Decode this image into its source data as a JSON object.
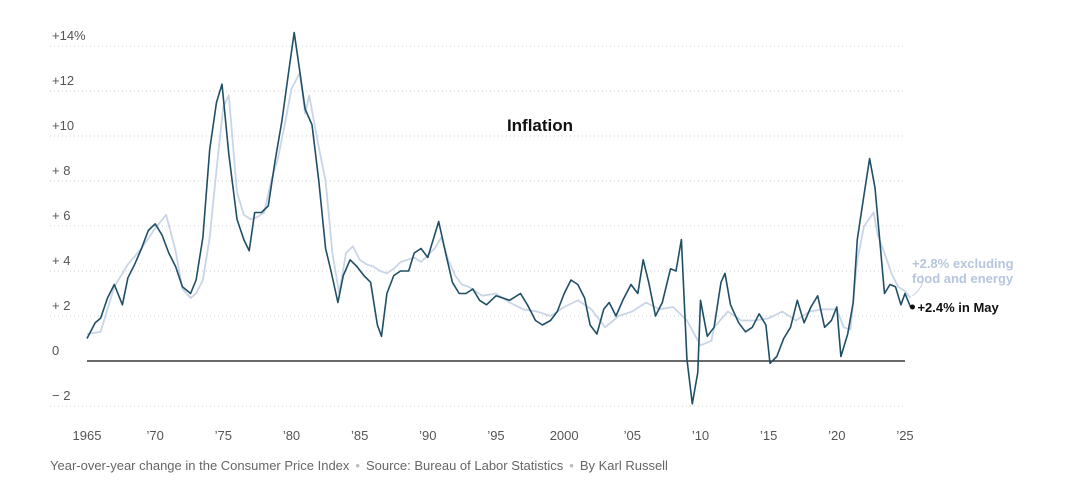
{
  "chart_data": {
    "type": "line",
    "title": "Inflation",
    "ylim": [
      -2.5,
      14.5
    ],
    "xlim": [
      1965,
      2025
    ],
    "y_ticks": [
      {
        "value": 14,
        "label": "+14%"
      },
      {
        "value": 12,
        "label": "+12"
      },
      {
        "value": 10,
        "label": "+10"
      },
      {
        "value": 8,
        "label": "+ 8"
      },
      {
        "value": 6,
        "label": "+ 6"
      },
      {
        "value": 4,
        "label": "+ 4"
      },
      {
        "value": 2,
        "label": "+ 2"
      },
      {
        "value": 0,
        "label": "0"
      },
      {
        "value": -2,
        "label": "− 2"
      }
    ],
    "x_ticks": [
      {
        "value": 1965,
        "label": "1965"
      },
      {
        "value": 1970,
        "label": "’70"
      },
      {
        "value": 1975,
        "label": "’75"
      },
      {
        "value": 1980,
        "label": "’80"
      },
      {
        "value": 1985,
        "label": "’85"
      },
      {
        "value": 1990,
        "label": "’90"
      },
      {
        "value": 1995,
        "label": "’95"
      },
      {
        "value": 2000,
        "label": "2000"
      },
      {
        "value": 2005,
        "label": "’05"
      },
      {
        "value": 2010,
        "label": "’10"
      },
      {
        "value": 2015,
        "label": "’15"
      },
      {
        "value": 2020,
        "label": "’20"
      },
      {
        "value": 2025,
        "label": "’25"
      }
    ],
    "grid": true,
    "series": [
      {
        "name": "",
        "color": "#c9d5e6",
        "end_label": [
          "+2.8% excluding",
          "food and energy"
        ],
        "points": [
          [
            1965.0,
            1.2
          ],
          [
            1966.0,
            1.3
          ],
          [
            1967.0,
            3.3
          ],
          [
            1968.0,
            4.3
          ],
          [
            1969.0,
            5.0
          ],
          [
            1970.0,
            5.9
          ],
          [
            1970.8,
            6.5
          ],
          [
            1971.5,
            4.9
          ],
          [
            1972.0,
            3.2
          ],
          [
            1972.6,
            2.8
          ],
          [
            1973.0,
            3.0
          ],
          [
            1973.5,
            3.6
          ],
          [
            1974.0,
            5.5
          ],
          [
            1974.5,
            8.5
          ],
          [
            1975.0,
            11.3
          ],
          [
            1975.4,
            11.8
          ],
          [
            1976.0,
            7.5
          ],
          [
            1976.5,
            6.5
          ],
          [
            1977.0,
            6.3
          ],
          [
            1977.5,
            6.4
          ],
          [
            1978.0,
            6.6
          ],
          [
            1978.5,
            8.0
          ],
          [
            1979.0,
            9.0
          ],
          [
            1979.5,
            10.5
          ],
          [
            1980.0,
            12.1
          ],
          [
            1980.6,
            12.8
          ],
          [
            1981.0,
            11.0
          ],
          [
            1981.3,
            11.8
          ],
          [
            1982.0,
            9.5
          ],
          [
            1982.5,
            8.0
          ],
          [
            1983.0,
            4.8
          ],
          [
            1983.5,
            3.0
          ],
          [
            1984.0,
            4.8
          ],
          [
            1984.5,
            5.1
          ],
          [
            1985.0,
            4.5
          ],
          [
            1985.5,
            4.3
          ],
          [
            1986.0,
            4.2
          ],
          [
            1986.5,
            4.0
          ],
          [
            1987.0,
            3.9
          ],
          [
            1987.5,
            4.1
          ],
          [
            1988.0,
            4.4
          ],
          [
            1988.5,
            4.5
          ],
          [
            1989.0,
            4.6
          ],
          [
            1989.5,
            4.4
          ],
          [
            1990.0,
            4.7
          ],
          [
            1990.5,
            5.0
          ],
          [
            1991.0,
            5.5
          ],
          [
            1991.5,
            4.5
          ],
          [
            1992.0,
            3.8
          ],
          [
            1992.5,
            3.4
          ],
          [
            1993.0,
            3.3
          ],
          [
            1993.5,
            3.1
          ],
          [
            1994.0,
            2.9
          ],
          [
            1995.0,
            3.0
          ],
          [
            1996.0,
            2.6
          ],
          [
            1997.0,
            2.3
          ],
          [
            1998.0,
            2.2
          ],
          [
            1999.0,
            2.0
          ],
          [
            2000.0,
            2.4
          ],
          [
            2001.0,
            2.7
          ],
          [
            2002.0,
            2.3
          ],
          [
            2003.0,
            1.5
          ],
          [
            2004.0,
            2.0
          ],
          [
            2005.0,
            2.2
          ],
          [
            2006.0,
            2.6
          ],
          [
            2007.0,
            2.3
          ],
          [
            2008.0,
            2.4
          ],
          [
            2009.0,
            1.8
          ],
          [
            2010.0,
            0.7
          ],
          [
            2010.8,
            0.9
          ],
          [
            2011.0,
            1.5
          ],
          [
            2012.0,
            2.2
          ],
          [
            2013.0,
            1.8
          ],
          [
            2014.0,
            1.8
          ],
          [
            2015.0,
            1.9
          ],
          [
            2016.0,
            2.2
          ],
          [
            2017.0,
            1.8
          ],
          [
            2018.0,
            2.2
          ],
          [
            2019.0,
            2.3
          ],
          [
            2020.0,
            2.3
          ],
          [
            2020.5,
            1.5
          ],
          [
            2021.0,
            1.4
          ],
          [
            2021.5,
            4.5
          ],
          [
            2022.0,
            6.0
          ],
          [
            2022.7,
            6.6
          ],
          [
            2023.0,
            5.6
          ],
          [
            2023.5,
            4.8
          ],
          [
            2024.0,
            3.9
          ],
          [
            2024.5,
            3.3
          ],
          [
            2025.0,
            3.1
          ],
          [
            2025.4,
            2.8
          ]
        ]
      },
      {
        "name": "",
        "color": "#1f4f66",
        "end_label": [
          "+2.4% in May"
        ],
        "points": [
          [
            1965.0,
            1.0
          ],
          [
            1965.6,
            1.7
          ],
          [
            1966.0,
            1.9
          ],
          [
            1966.5,
            2.8
          ],
          [
            1967.0,
            3.4
          ],
          [
            1967.6,
            2.5
          ],
          [
            1968.0,
            3.7
          ],
          [
            1968.5,
            4.3
          ],
          [
            1969.0,
            5.0
          ],
          [
            1969.5,
            5.8
          ],
          [
            1970.0,
            6.1
          ],
          [
            1970.5,
            5.6
          ],
          [
            1971.0,
            4.8
          ],
          [
            1971.5,
            4.2
          ],
          [
            1972.0,
            3.3
          ],
          [
            1972.6,
            3.0
          ],
          [
            1973.0,
            3.6
          ],
          [
            1973.5,
            5.5
          ],
          [
            1974.0,
            9.4
          ],
          [
            1974.5,
            11.5
          ],
          [
            1974.9,
            12.3
          ],
          [
            1975.4,
            9.2
          ],
          [
            1976.0,
            6.3
          ],
          [
            1976.5,
            5.4
          ],
          [
            1976.9,
            4.9
          ],
          [
            1977.3,
            6.6
          ],
          [
            1977.8,
            6.6
          ],
          [
            1978.3,
            6.9
          ],
          [
            1978.8,
            8.9
          ],
          [
            1979.3,
            10.7
          ],
          [
            1979.8,
            12.9
          ],
          [
            1980.2,
            14.6
          ],
          [
            1980.6,
            12.9
          ],
          [
            1981.0,
            11.2
          ],
          [
            1981.5,
            10.5
          ],
          [
            1982.0,
            8.0
          ],
          [
            1982.5,
            5.0
          ],
          [
            1982.9,
            4.0
          ],
          [
            1983.4,
            2.6
          ],
          [
            1983.8,
            3.8
          ],
          [
            1984.3,
            4.5
          ],
          [
            1984.8,
            4.2
          ],
          [
            1985.3,
            3.8
          ],
          [
            1985.8,
            3.5
          ],
          [
            1986.3,
            1.6
          ],
          [
            1986.6,
            1.1
          ],
          [
            1987.0,
            3.0
          ],
          [
            1987.5,
            3.8
          ],
          [
            1988.0,
            4.0
          ],
          [
            1988.6,
            4.0
          ],
          [
            1989.0,
            4.8
          ],
          [
            1989.5,
            5.0
          ],
          [
            1990.0,
            4.6
          ],
          [
            1990.8,
            6.2
          ],
          [
            1991.3,
            4.8
          ],
          [
            1991.8,
            3.5
          ],
          [
            1992.3,
            3.0
          ],
          [
            1992.8,
            3.0
          ],
          [
            1993.3,
            3.2
          ],
          [
            1993.8,
            2.7
          ],
          [
            1994.3,
            2.5
          ],
          [
            1995.0,
            2.9
          ],
          [
            1995.5,
            2.8
          ],
          [
            1996.0,
            2.7
          ],
          [
            1996.8,
            3.0
          ],
          [
            1997.3,
            2.5
          ],
          [
            1997.9,
            1.8
          ],
          [
            1998.4,
            1.6
          ],
          [
            1999.0,
            1.8
          ],
          [
            1999.5,
            2.2
          ],
          [
            2000.0,
            3.0
          ],
          [
            2000.5,
            3.6
          ],
          [
            2001.0,
            3.4
          ],
          [
            2001.5,
            2.8
          ],
          [
            2001.9,
            1.6
          ],
          [
            2002.4,
            1.2
          ],
          [
            2002.9,
            2.3
          ],
          [
            2003.3,
            2.6
          ],
          [
            2003.8,
            2.0
          ],
          [
            2004.3,
            2.7
          ],
          [
            2004.9,
            3.4
          ],
          [
            2005.4,
            3.0
          ],
          [
            2005.8,
            4.5
          ],
          [
            2006.2,
            3.5
          ],
          [
            2006.7,
            2.0
          ],
          [
            2007.2,
            2.6
          ],
          [
            2007.8,
            4.1
          ],
          [
            2008.2,
            4.0
          ],
          [
            2008.6,
            5.4
          ],
          [
            2009.0,
            0.1
          ],
          [
            2009.4,
            -1.9
          ],
          [
            2009.8,
            -0.5
          ],
          [
            2010.0,
            2.7
          ],
          [
            2010.5,
            1.1
          ],
          [
            2011.0,
            1.5
          ],
          [
            2011.5,
            3.5
          ],
          [
            2011.8,
            3.9
          ],
          [
            2012.2,
            2.5
          ],
          [
            2012.8,
            1.7
          ],
          [
            2013.3,
            1.3
          ],
          [
            2013.8,
            1.5
          ],
          [
            2014.3,
            2.1
          ],
          [
            2014.8,
            1.6
          ],
          [
            2015.1,
            -0.1
          ],
          [
            2015.6,
            0.2
          ],
          [
            2016.1,
            1.0
          ],
          [
            2016.6,
            1.5
          ],
          [
            2017.1,
            2.7
          ],
          [
            2017.6,
            1.7
          ],
          [
            2018.1,
            2.4
          ],
          [
            2018.6,
            2.9
          ],
          [
            2019.1,
            1.5
          ],
          [
            2019.6,
            1.8
          ],
          [
            2020.0,
            2.4
          ],
          [
            2020.3,
            0.2
          ],
          [
            2020.8,
            1.2
          ],
          [
            2021.2,
            2.6
          ],
          [
            2021.5,
            5.4
          ],
          [
            2021.9,
            7.0
          ],
          [
            2022.4,
            9.0
          ],
          [
            2022.8,
            7.7
          ],
          [
            2023.2,
            5.0
          ],
          [
            2023.5,
            3.0
          ],
          [
            2023.9,
            3.4
          ],
          [
            2024.3,
            3.3
          ],
          [
            2024.7,
            2.5
          ],
          [
            2025.0,
            3.0
          ],
          [
            2025.4,
            2.4
          ]
        ]
      }
    ]
  },
  "caption": {
    "description": "Year-over-year change in the Consumer Price Index",
    "source": "Source: Bureau of Labor Statistics",
    "byline": "By Karl Russell",
    "separator": "•"
  }
}
